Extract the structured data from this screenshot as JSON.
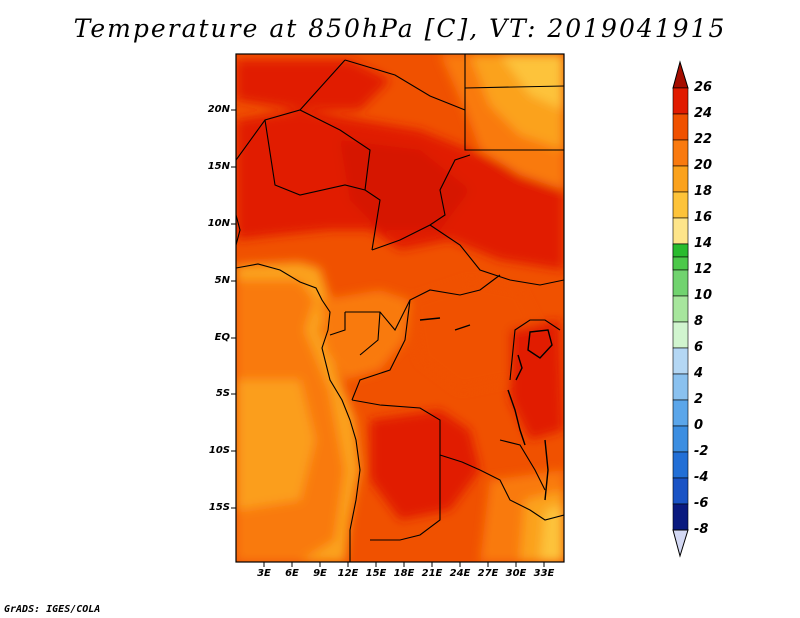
{
  "title": "Temperature at 850hPa [C], VT: 2019041915",
  "credit": "GrADS: IGES/COLA",
  "map": {
    "y_axis_labels": [
      "20N",
      "15N",
      "10N",
      "5N",
      "EQ",
      "5S",
      "10S",
      "15S"
    ],
    "x_axis_labels": [
      "3E",
      "6E",
      "9E",
      "12E",
      "15E",
      "18E",
      "21E",
      "24E",
      "27E",
      "30E",
      "33E"
    ],
    "lon_range": [
      0,
      35
    ],
    "lat_range": [
      -20,
      24.5
    ],
    "variable": "Temperature at 850hPa",
    "units": "C",
    "valid_time": "2019041915"
  },
  "colorbar": {
    "labels": [
      "26",
      "24",
      "22",
      "20",
      "18",
      "16",
      "14",
      "12",
      "10",
      "8",
      "6",
      "4",
      "2",
      "0",
      "-2",
      "-4",
      "-6",
      "-8"
    ],
    "colors": [
      "#a50d00",
      "#e11b00",
      "#f05100",
      "#f97a0f",
      "#fba21d",
      "#fdc33a",
      "#fee58a",
      "#fdf9b8",
      "#29bb2e",
      "#71d36f",
      "#a7e69d",
      "#d1f5cf",
      "#b4d7f4",
      "#8ac1ef",
      "#5ba6ea",
      "#3c8ee1",
      "#226fd6",
      "#1a53c5",
      "#1241aa",
      "#0a1a7f",
      "#d3d8f3"
    ]
  }
}
